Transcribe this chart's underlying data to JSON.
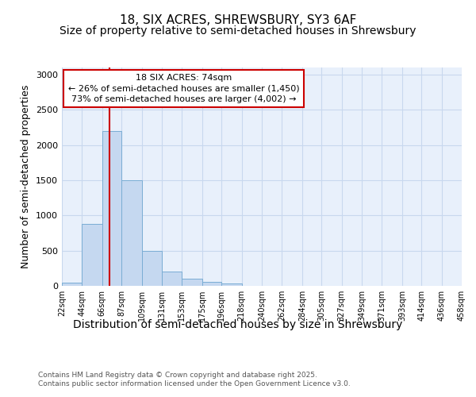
{
  "title": "18, SIX ACRES, SHREWSBURY, SY3 6AF",
  "subtitle": "Size of property relative to semi-detached houses in Shrewsbury",
  "xlabel": "Distribution of semi-detached houses by size in Shrewsbury",
  "ylabel": "Number of semi-detached properties",
  "bins": [
    22,
    44,
    66,
    87,
    109,
    131,
    153,
    175,
    196,
    218,
    240,
    262,
    284,
    305,
    327,
    349,
    371,
    393,
    414,
    436,
    458
  ],
  "counts": [
    50,
    880,
    2200,
    1500,
    500,
    200,
    100,
    55,
    30,
    5,
    5,
    5,
    2,
    0,
    0,
    0,
    0,
    0,
    0,
    0
  ],
  "bar_color": "#c5d8f0",
  "bar_edge_color": "#7aadd4",
  "grid_color": "#c8d8ee",
  "plot_bg_color": "#e8f0fb",
  "property_size": 74,
  "red_line_color": "#cc0000",
  "annotation_line1": "18 SIX ACRES: 74sqm",
  "annotation_line2": "← 26% of semi-detached houses are smaller (1,450)",
  "annotation_line3": "73% of semi-detached houses are larger (4,002) →",
  "annotation_box_color": "#ffffff",
  "annotation_border_color": "#cc0000",
  "ylim": [
    0,
    3100
  ],
  "yticks": [
    0,
    500,
    1000,
    1500,
    2000,
    2500,
    3000
  ],
  "footnote1": "Contains HM Land Registry data © Crown copyright and database right 2025.",
  "footnote2": "Contains public sector information licensed under the Open Government Licence v3.0.",
  "fig_bg_color": "#ffffff",
  "title_fontsize": 11,
  "subtitle_fontsize": 10,
  "xlabel_fontsize": 10,
  "ylabel_fontsize": 9
}
